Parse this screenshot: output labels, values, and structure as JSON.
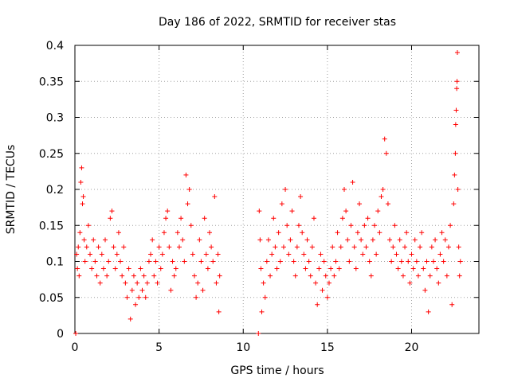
{
  "chart_data": {
    "type": "scatter",
    "title": "Day 186 of 2022, SRMTID for receiver stas",
    "xlabel": "GPS time / hours",
    "ylabel": "SRMTID / TECUs",
    "xlim": [
      0,
      24
    ],
    "ylim": [
      0,
      0.4
    ],
    "xticks": [
      0,
      5,
      10,
      15,
      20
    ],
    "xtick_labels": [
      "0",
      "5",
      "10",
      "15",
      "20"
    ],
    "yticks": [
      0,
      0.05,
      0.1,
      0.15,
      0.2,
      0.25,
      0.3,
      0.35,
      0.4
    ],
    "ytick_labels": [
      "0",
      "0.05",
      "0.1",
      "0.15",
      "0.2",
      "0.25",
      "0.3",
      "0.35",
      "0.4"
    ],
    "grid": true,
    "marker": "+",
    "color": "#ff0000",
    "series": [
      {
        "name": "SRMTID",
        "points": [
          [
            0.05,
            0.0
          ],
          [
            0.1,
            0.11
          ],
          [
            0.15,
            0.09
          ],
          [
            0.2,
            0.12
          ],
          [
            0.25,
            0.08
          ],
          [
            0.3,
            0.14
          ],
          [
            0.35,
            0.21
          ],
          [
            0.4,
            0.23
          ],
          [
            0.45,
            0.18
          ],
          [
            0.5,
            0.19
          ],
          [
            0.55,
            0.13
          ],
          [
            0.6,
            0.1
          ],
          [
            0.7,
            0.12
          ],
          [
            0.8,
            0.15
          ],
          [
            0.9,
            0.11
          ],
          [
            1.0,
            0.09
          ],
          [
            1.1,
            0.13
          ],
          [
            1.2,
            0.1
          ],
          [
            1.3,
            0.08
          ],
          [
            1.4,
            0.12
          ],
          [
            1.5,
            0.07
          ],
          [
            1.6,
            0.11
          ],
          [
            1.7,
            0.09
          ],
          [
            1.8,
            0.13
          ],
          [
            1.9,
            0.08
          ],
          [
            2.0,
            0.1
          ],
          [
            2.1,
            0.16
          ],
          [
            2.2,
            0.17
          ],
          [
            2.3,
            0.12
          ],
          [
            2.4,
            0.09
          ],
          [
            2.5,
            0.11
          ],
          [
            2.6,
            0.14
          ],
          [
            2.7,
            0.1
          ],
          [
            2.8,
            0.08
          ],
          [
            2.9,
            0.12
          ],
          [
            3.0,
            0.07
          ],
          [
            3.1,
            0.05
          ],
          [
            3.2,
            0.09
          ],
          [
            3.3,
            0.02
          ],
          [
            3.4,
            0.06
          ],
          [
            3.5,
            0.08
          ],
          [
            3.6,
            0.04
          ],
          [
            3.7,
            0.07
          ],
          [
            3.8,
            0.05
          ],
          [
            3.9,
            0.09
          ],
          [
            4.0,
            0.06
          ],
          [
            4.1,
            0.08
          ],
          [
            4.2,
            0.05
          ],
          [
            4.3,
            0.07
          ],
          [
            4.4,
            0.1
          ],
          [
            4.5,
            0.11
          ],
          [
            4.6,
            0.13
          ],
          [
            4.7,
            0.08
          ],
          [
            4.8,
            0.1
          ],
          [
            4.9,
            0.07
          ],
          [
            5.0,
            0.12
          ],
          [
            5.1,
            0.09
          ],
          [
            5.2,
            0.11
          ],
          [
            5.3,
            0.14
          ],
          [
            5.4,
            0.16
          ],
          [
            5.5,
            0.17
          ],
          [
            5.6,
            0.12
          ],
          [
            5.7,
            0.06
          ],
          [
            5.8,
            0.1
          ],
          [
            5.9,
            0.08
          ],
          [
            6.0,
            0.09
          ],
          [
            6.1,
            0.14
          ],
          [
            6.2,
            0.12
          ],
          [
            6.3,
            0.16
          ],
          [
            6.4,
            0.13
          ],
          [
            6.5,
            0.1
          ],
          [
            6.6,
            0.22
          ],
          [
            6.7,
            0.18
          ],
          [
            6.8,
            0.2
          ],
          [
            6.9,
            0.15
          ],
          [
            7.0,
            0.11
          ],
          [
            7.1,
            0.08
          ],
          [
            7.2,
            0.05
          ],
          [
            7.3,
            0.07
          ],
          [
            7.4,
            0.13
          ],
          [
            7.5,
            0.1
          ],
          [
            7.6,
            0.06
          ],
          [
            7.7,
            0.16
          ],
          [
            7.8,
            0.11
          ],
          [
            7.9,
            0.09
          ],
          [
            8.0,
            0.14
          ],
          [
            8.1,
            0.12
          ],
          [
            8.2,
            0.1
          ],
          [
            8.3,
            0.19
          ],
          [
            8.4,
            0.07
          ],
          [
            8.5,
            0.11
          ],
          [
            8.55,
            0.03
          ],
          [
            8.6,
            0.08
          ],
          [
            10.9,
            0.0
          ],
          [
            10.95,
            0.17
          ],
          [
            11.0,
            0.13
          ],
          [
            11.05,
            0.09
          ],
          [
            11.1,
            0.03
          ],
          [
            11.2,
            0.07
          ],
          [
            11.3,
            0.05
          ],
          [
            11.4,
            0.1
          ],
          [
            11.5,
            0.13
          ],
          [
            11.6,
            0.08
          ],
          [
            11.7,
            0.11
          ],
          [
            11.8,
            0.16
          ],
          [
            11.9,
            0.12
          ],
          [
            12.0,
            0.09
          ],
          [
            12.1,
            0.14
          ],
          [
            12.2,
            0.1
          ],
          [
            12.3,
            0.18
          ],
          [
            12.4,
            0.12
          ],
          [
            12.5,
            0.2
          ],
          [
            12.6,
            0.15
          ],
          [
            12.7,
            0.11
          ],
          [
            12.8,
            0.13
          ],
          [
            12.9,
            0.17
          ],
          [
            13.0,
            0.1
          ],
          [
            13.1,
            0.08
          ],
          [
            13.2,
            0.12
          ],
          [
            13.3,
            0.15
          ],
          [
            13.4,
            0.19
          ],
          [
            13.5,
            0.14
          ],
          [
            13.6,
            0.11
          ],
          [
            13.7,
            0.09
          ],
          [
            13.8,
            0.13
          ],
          [
            13.9,
            0.1
          ],
          [
            14.0,
            0.08
          ],
          [
            14.1,
            0.12
          ],
          [
            14.2,
            0.16
          ],
          [
            14.3,
            0.07
          ],
          [
            14.4,
            0.04
          ],
          [
            14.5,
            0.09
          ],
          [
            14.6,
            0.11
          ],
          [
            14.7,
            0.06
          ],
          [
            14.8,
            0.1
          ],
          [
            14.9,
            0.08
          ],
          [
            15.0,
            0.05
          ],
          [
            15.1,
            0.07
          ],
          [
            15.2,
            0.09
          ],
          [
            15.3,
            0.12
          ],
          [
            15.4,
            0.08
          ],
          [
            15.5,
            0.1
          ],
          [
            15.6,
            0.14
          ],
          [
            15.7,
            0.09
          ],
          [
            15.8,
            0.12
          ],
          [
            15.9,
            0.16
          ],
          [
            16.0,
            0.2
          ],
          [
            16.1,
            0.17
          ],
          [
            16.2,
            0.13
          ],
          [
            16.3,
            0.1
          ],
          [
            16.4,
            0.15
          ],
          [
            16.5,
            0.21
          ],
          [
            16.6,
            0.12
          ],
          [
            16.7,
            0.09
          ],
          [
            16.8,
            0.14
          ],
          [
            16.9,
            0.18
          ],
          [
            17.0,
            0.13
          ],
          [
            17.1,
            0.11
          ],
          [
            17.2,
            0.15
          ],
          [
            17.3,
            0.12
          ],
          [
            17.4,
            0.16
          ],
          [
            17.5,
            0.1
          ],
          [
            17.6,
            0.08
          ],
          [
            17.7,
            0.13
          ],
          [
            17.8,
            0.15
          ],
          [
            17.9,
            0.11
          ],
          [
            18.0,
            0.17
          ],
          [
            18.1,
            0.14
          ],
          [
            18.2,
            0.19
          ],
          [
            18.3,
            0.2
          ],
          [
            18.4,
            0.27
          ],
          [
            18.5,
            0.25
          ],
          [
            18.6,
            0.18
          ],
          [
            18.7,
            0.13
          ],
          [
            18.8,
            0.1
          ],
          [
            18.9,
            0.12
          ],
          [
            19.0,
            0.15
          ],
          [
            19.1,
            0.11
          ],
          [
            19.2,
            0.09
          ],
          [
            19.3,
            0.13
          ],
          [
            19.4,
            0.1
          ],
          [
            19.5,
            0.08
          ],
          [
            19.6,
            0.12
          ],
          [
            19.7,
            0.14
          ],
          [
            19.8,
            0.1
          ],
          [
            19.9,
            0.07
          ],
          [
            20.0,
            0.11
          ],
          [
            20.1,
            0.09
          ],
          [
            20.2,
            0.13
          ],
          [
            20.3,
            0.1
          ],
          [
            20.4,
            0.08
          ],
          [
            20.5,
            0.12
          ],
          [
            20.6,
            0.14
          ],
          [
            20.7,
            0.09
          ],
          [
            20.8,
            0.06
          ],
          [
            20.9,
            0.1
          ],
          [
            21.0,
            0.03
          ],
          [
            21.1,
            0.08
          ],
          [
            21.2,
            0.12
          ],
          [
            21.3,
            0.1
          ],
          [
            21.4,
            0.13
          ],
          [
            21.5,
            0.09
          ],
          [
            21.6,
            0.07
          ],
          [
            21.7,
            0.11
          ],
          [
            21.8,
            0.14
          ],
          [
            21.9,
            0.1
          ],
          [
            22.0,
            0.13
          ],
          [
            22.1,
            0.08
          ],
          [
            22.2,
            0.12
          ],
          [
            22.3,
            0.15
          ],
          [
            22.4,
            0.04
          ],
          [
            22.5,
            0.18
          ],
          [
            22.55,
            0.22
          ],
          [
            22.6,
            0.25
          ],
          [
            22.62,
            0.29
          ],
          [
            22.65,
            0.31
          ],
          [
            22.68,
            0.34
          ],
          [
            22.7,
            0.35
          ],
          [
            22.72,
            0.39
          ],
          [
            22.75,
            0.2
          ],
          [
            22.8,
            0.12
          ],
          [
            22.85,
            0.08
          ],
          [
            22.9,
            0.1
          ]
        ]
      }
    ]
  }
}
